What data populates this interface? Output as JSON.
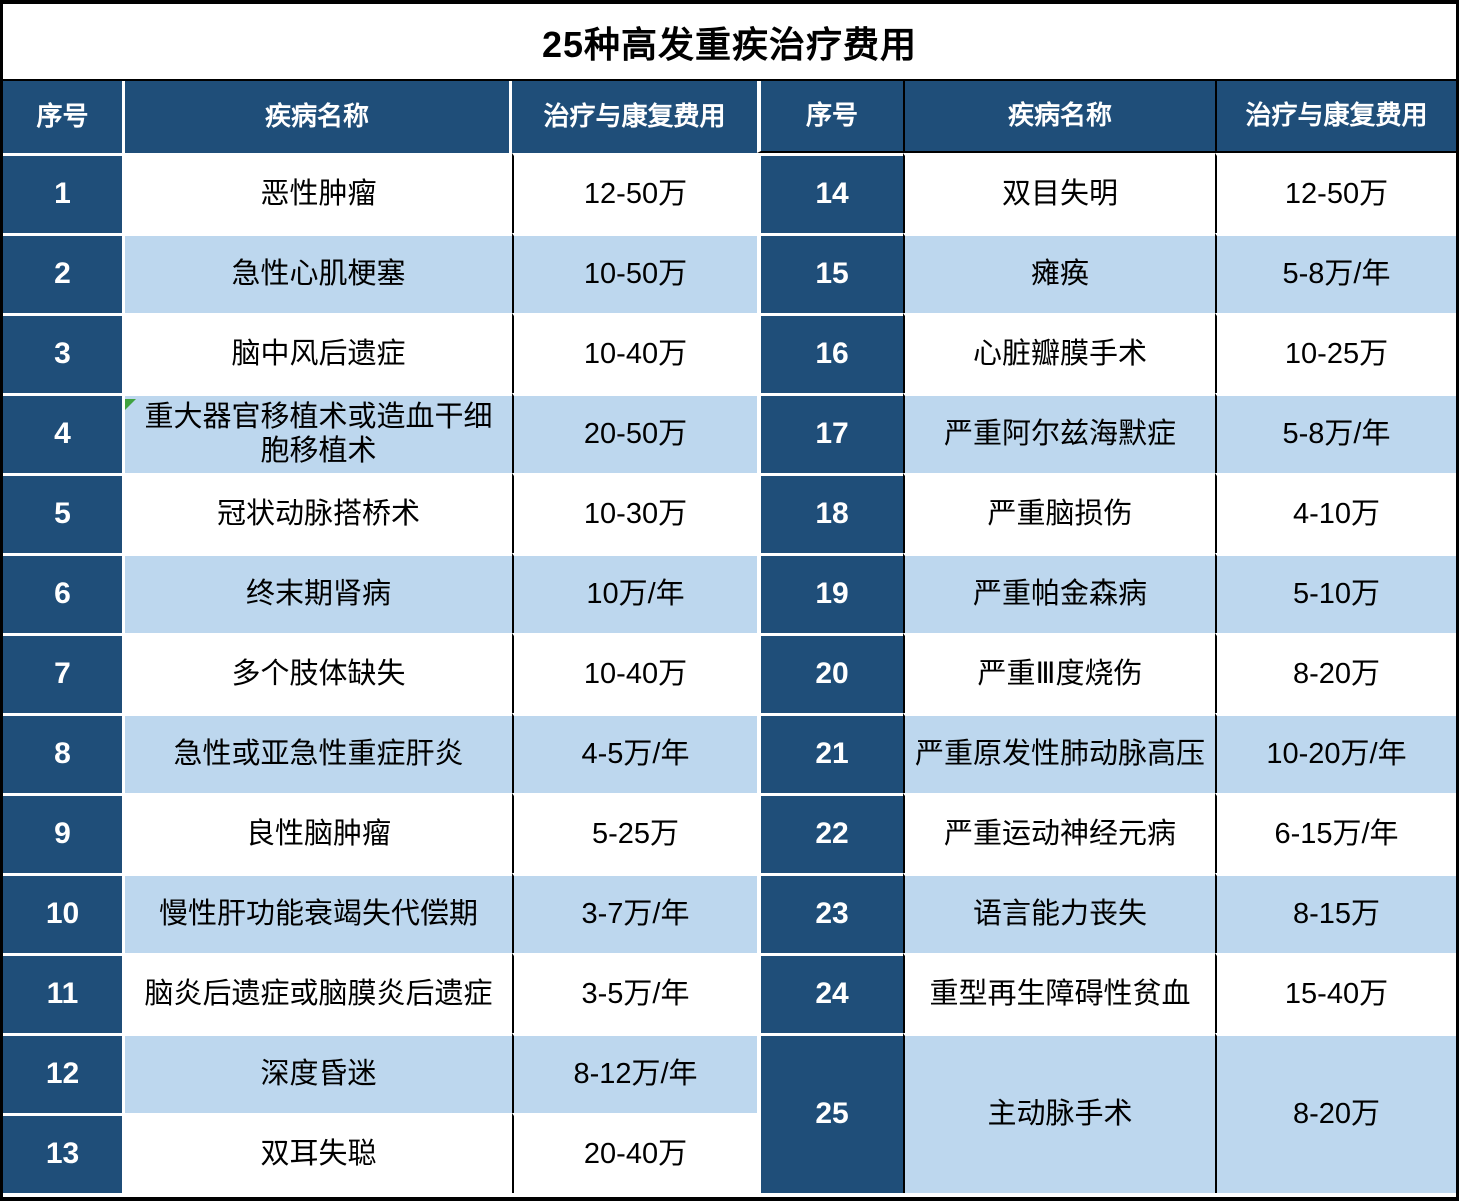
{
  "title": "25种高发重疾治疗费用",
  "columns": {
    "no": "序号",
    "disease": "疾病名称",
    "cost": "治疗与康复费用"
  },
  "colors": {
    "header_bg": "#1F4E79",
    "alt_row_bg": "#BDD7EE",
    "row_bg": "#FFFFFF",
    "grid_line": "#000000",
    "note_triangle": "#3FA23F"
  },
  "left_rows": [
    {
      "no": "1",
      "name": "恶性肿瘤",
      "cost": "12-50万"
    },
    {
      "no": "2",
      "name": "急性心肌梗塞",
      "cost": "10-50万"
    },
    {
      "no": "3",
      "name": "脑中风后遗症",
      "cost": "10-40万"
    },
    {
      "no": "4",
      "name": "重大器官移植术或造血干细胞移植术",
      "cost": "20-50万"
    },
    {
      "no": "5",
      "name": "冠状动脉搭桥术",
      "cost": "10-30万"
    },
    {
      "no": "6",
      "name": "终末期肾病",
      "cost": "10万/年"
    },
    {
      "no": "7",
      "name": "多个肢体缺失",
      "cost": "10-40万"
    },
    {
      "no": "8",
      "name": "急性或亚急性重症肝炎",
      "cost": "4-5万/年"
    },
    {
      "no": "9",
      "name": "良性脑肿瘤",
      "cost": "5-25万"
    },
    {
      "no": "10",
      "name": "慢性肝功能衰竭失代偿期",
      "cost": "3-7万/年"
    },
    {
      "no": "11",
      "name": "脑炎后遗症或脑膜炎后遗症",
      "cost": "3-5万/年"
    },
    {
      "no": "12",
      "name": "深度昏迷",
      "cost": "8-12万/年"
    },
    {
      "no": "13",
      "name": "双耳失聪",
      "cost": "20-40万"
    }
  ],
  "right_rows": [
    {
      "no": "14",
      "name": "双目失明",
      "cost": "12-50万"
    },
    {
      "no": "15",
      "name": "瘫痪",
      "cost": "5-8万/年"
    },
    {
      "no": "16",
      "name": "心脏瓣膜手术",
      "cost": "10-25万"
    },
    {
      "no": "17",
      "name": "严重阿尔兹海默症",
      "cost": "5-8万/年"
    },
    {
      "no": "18",
      "name": "严重脑损伤",
      "cost": "4-10万"
    },
    {
      "no": "19",
      "name": "严重帕金森病",
      "cost": "5-10万"
    },
    {
      "no": "20",
      "name": "严重Ⅲ度烧伤",
      "cost": "8-20万"
    },
    {
      "no": "21",
      "name": "严重原发性肺动脉高压",
      "cost": "10-20万/年"
    },
    {
      "no": "22",
      "name": "严重运动神经元病",
      "cost": "6-15万/年"
    },
    {
      "no": "23",
      "name": "语言能力丧失",
      "cost": "8-15万"
    },
    {
      "no": "24",
      "name": "重型再生障碍性贫血",
      "cost": "15-40万"
    },
    {
      "no": "25",
      "name": "主动脉手术",
      "cost": "8-20万"
    }
  ]
}
